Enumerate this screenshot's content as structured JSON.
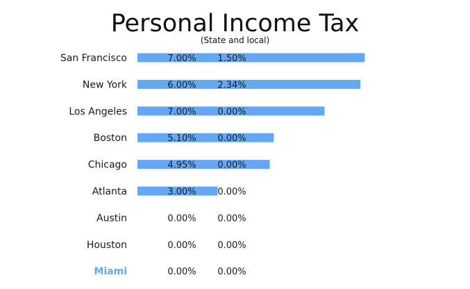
{
  "chart_data": {
    "type": "bar",
    "orientation": "horizontal",
    "title": "Personal Income Tax",
    "subtitle": "(State and local)",
    "categories": [
      "San Francisco",
      "New York",
      "Los Angeles",
      "Boston",
      "Chicago",
      "Atlanta",
      "Austin",
      "Houston",
      "Miami"
    ],
    "highlight_category": "Miami",
    "series": [
      {
        "values": [
          7.0,
          6.0,
          7.0,
          5.1,
          4.95,
          3.0,
          0.0,
          0.0,
          0.0
        ]
      },
      {
        "values": [
          1.5,
          2.34,
          0.0,
          0.0,
          0.0,
          0.0,
          0.0,
          0.0,
          0.0
        ]
      }
    ],
    "value_labels": [
      [
        "7.00%",
        "6.00%",
        "7.00%",
        "5.10%",
        "4.95%",
        "3.00%",
        "0.00%",
        "0.00%",
        "0.00%"
      ],
      [
        "1.50%",
        "2.34%",
        "0.00%",
        "0.00%",
        "0.00%",
        "0.00%",
        "0.00%",
        "0.00%",
        "0.00%"
      ]
    ],
    "bar_metric": "total",
    "xlim": [
      0,
      8.5
    ],
    "grid": false,
    "legend": "none"
  },
  "colors": {
    "bar": "#64a8f5",
    "highlight_label": "#64a8f5",
    "text": "#1a1a1a"
  }
}
